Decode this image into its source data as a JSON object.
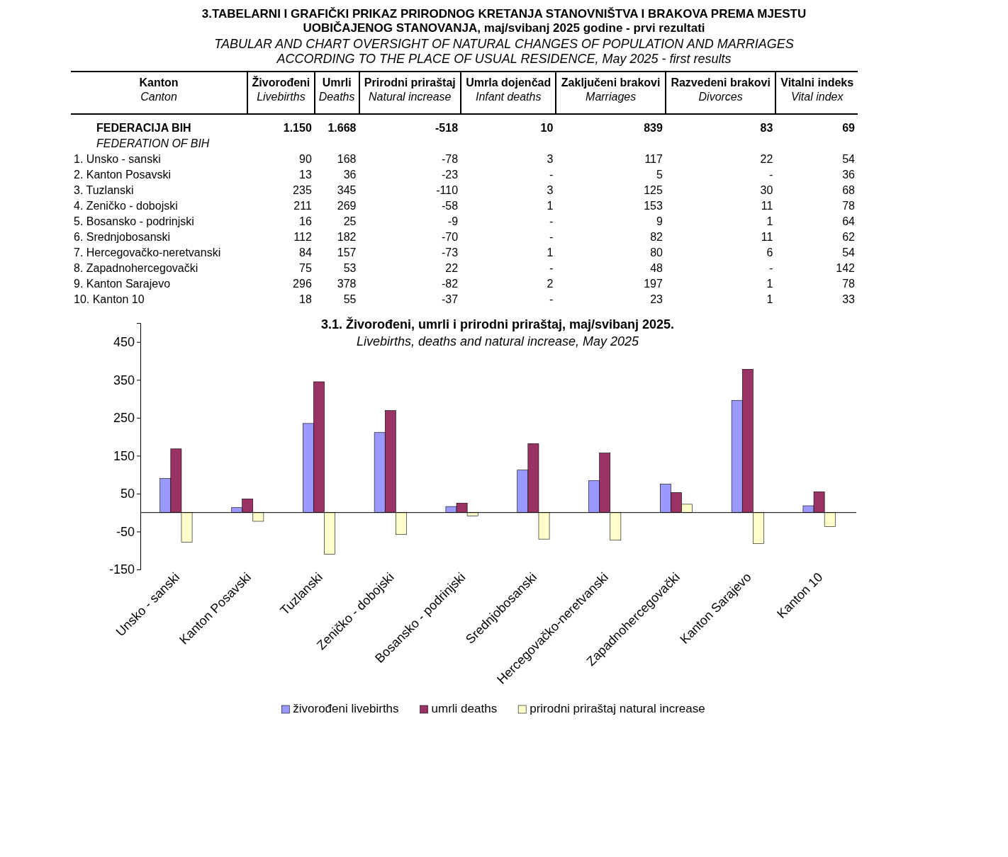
{
  "chart_data": [
    {
      "type": "other",
      "title": "3.TABELARNI I GRAFIČKI PRIKAZ PRIRODNOG KRETANJA STANOVNIŠTVA I BRAKOVA PREMA MJESTU UOBIČAJENOG STANOVANJA, maj/svibanj 2025 godine - prvi rezultati",
      "subtitle": "TABULAR AND CHART OVERSIGHT OF NATURAL CHANGES OF POPULATION AND MARRIAGES ACCORDING TO THE PLACE OF USUAL RESIDENCE, May 2025 - first results",
      "annotations": [
        "Kanton",
        "Živorođeni",
        "Umrli",
        "Prirodni priraštaj",
        "Umrla dojenčad",
        "Zaključeni brakovi",
        "Razvedeni brakovi",
        "Vitalni indeks",
        "Canton",
        "Livebirths",
        "Deaths",
        "Natural increase",
        "Infant deaths",
        "Marriages",
        "Divorces",
        "Vital index",
        "FEDERACIJA BIH",
        "1.150",
        "1.668",
        "-518",
        "10",
        "839",
        "83",
        "69",
        "FEDERATION OF BIH",
        "1. Unsko - sanski",
        "90",
        "168",
        "-78",
        "3",
        "117",
        "22",
        "54",
        "2. Kanton Posavski",
        "13",
        "36",
        "-23",
        "-",
        "5",
        "-",
        "36",
        "3. Tuzlanski",
        "235",
        "345",
        "-110",
        "3",
        "125",
        "30",
        "68",
        "4. Zeničko - dobojski",
        "211",
        "269",
        "-58",
        "1",
        "153",
        "11",
        "78",
        "5. Bosansko - podrinjski",
        "16",
        "25",
        "-9",
        "-",
        "9",
        "1",
        "64",
        "6. Srednjobosanski",
        "112",
        "182",
        "-70",
        "-",
        "82",
        "11",
        "62",
        "7. Hercegovačko-neretvanski",
        "84",
        "157",
        "-73",
        "1",
        "80",
        "6",
        "54",
        "8. Zapadnohercegovački",
        "75",
        "53",
        "22",
        "-",
        "48",
        "-",
        "142",
        "9. Kanton Sarajevo",
        "296",
        "378",
        "-82",
        "2",
        "197",
        "1",
        "78",
        "10. Kanton 10",
        "18",
        "55",
        "-37",
        "-",
        "23",
        "1",
        "33"
      ]
    },
    {
      "type": "bar",
      "title": "3.1. Živorođeni, umrli i prirodni priraštaj, maj/svibanj 2025.",
      "subtitle": "Livebirths, deaths and natural increase, May 2025",
      "categories": [
        "Unsko - sanski",
        "Kanton Posavski",
        "Tuzlanski",
        "Zeničko - dobojski",
        "Bosansko - podrinjski",
        "Srednjobosanski",
        "Hercegovačko-neretvanski",
        "Zapadnohercegovački",
        "Kanton Sarajevo",
        "Kanton 10"
      ],
      "series": [
        {
          "name": "živorođeni livebirths",
          "color": "#9999ff",
          "values": [
            90,
            13,
            235,
            211,
            16,
            112,
            84,
            75,
            296,
            18
          ]
        },
        {
          "name": "umrli deaths",
          "color": "#993366",
          "values": [
            168,
            36,
            345,
            269,
            25,
            182,
            157,
            53,
            378,
            55
          ]
        },
        {
          "name": "prirodni priraštaj natural increase",
          "color": "#ffffcc",
          "values": [
            -78,
            -23,
            -110,
            -58,
            -9,
            -70,
            -73,
            22,
            -82,
            -37
          ]
        }
      ],
      "ylim": [
        -150,
        500
      ],
      "yticks": [
        -150,
        -50,
        50,
        150,
        250,
        350,
        450
      ],
      "grid": false,
      "legend": "bottom"
    }
  ]
}
